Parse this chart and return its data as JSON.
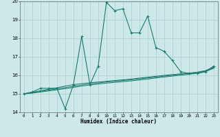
{
  "xlabel": "Humidex (Indice chaleur)",
  "x": [
    0,
    1,
    2,
    3,
    4,
    5,
    6,
    7,
    8,
    9,
    10,
    11,
    12,
    13,
    14,
    15,
    16,
    17,
    18,
    19,
    20,
    21,
    22,
    23
  ],
  "y_main": [
    15.0,
    15.1,
    15.3,
    15.3,
    15.3,
    14.2,
    15.5,
    18.1,
    15.5,
    16.5,
    19.95,
    19.5,
    19.6,
    18.3,
    18.3,
    19.2,
    17.5,
    17.3,
    16.8,
    16.2,
    16.1,
    16.1,
    16.2,
    16.5
  ],
  "y_line1": [
    15.0,
    15.08,
    15.17,
    15.25,
    15.33,
    15.42,
    15.5,
    15.55,
    15.6,
    15.64,
    15.68,
    15.72,
    15.76,
    15.8,
    15.85,
    15.9,
    15.95,
    16.0,
    16.04,
    16.08,
    16.12,
    16.17,
    16.25,
    16.45
  ],
  "y_line2": [
    15.0,
    15.06,
    15.13,
    15.2,
    15.27,
    15.34,
    15.41,
    15.48,
    15.54,
    15.59,
    15.64,
    15.68,
    15.72,
    15.76,
    15.81,
    15.86,
    15.91,
    15.96,
    16.01,
    16.06,
    16.11,
    16.16,
    16.24,
    16.42
  ],
  "y_line3": [
    15.0,
    15.04,
    15.1,
    15.16,
    15.22,
    15.28,
    15.35,
    15.42,
    15.48,
    15.53,
    15.58,
    15.62,
    15.66,
    15.7,
    15.75,
    15.8,
    15.86,
    15.91,
    15.96,
    16.01,
    16.06,
    16.11,
    16.2,
    16.38
  ],
  "line_color": "#1a7a6e",
  "bg_color": "#cce8e8",
  "grid_color": "#aacece",
  "ylim": [
    14.0,
    20.0
  ],
  "xlim": [
    -0.5,
    23.5
  ],
  "yticks": [
    14,
    15,
    16,
    17,
    18,
    19,
    20
  ],
  "xtick_fontsize": 4.2,
  "ytick_fontsize": 5.0,
  "xlabel_fontsize": 5.5
}
